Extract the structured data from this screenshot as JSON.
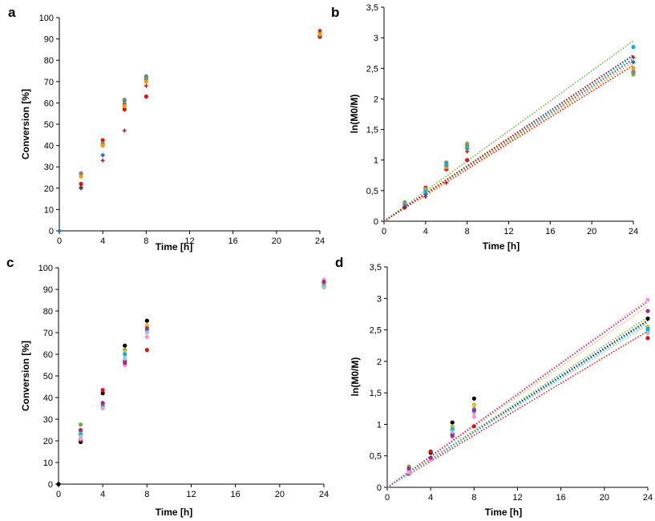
{
  "chart_data": [
    {
      "panel": "a",
      "type": "scatter",
      "xlabel": "Time [h]",
      "ylabel": "Conversion [%]",
      "xticks": [
        0,
        4,
        8,
        12,
        16,
        20,
        24
      ],
      "yticks": [
        "0",
        "10",
        "20",
        "30",
        "40",
        "50",
        "60",
        "70",
        "80",
        "90",
        "100"
      ],
      "xlim": [
        0,
        24
      ],
      "ylim": [
        0,
        100
      ],
      "grid": false,
      "series": [
        {
          "color": "#2e75b6",
          "marker": "diamond",
          "points": [
            [
              0,
              0
            ],
            [
              2,
              20
            ],
            [
              4,
              35.5
            ],
            [
              6,
              59.5
            ],
            [
              8,
              71
            ],
            [
              24,
              91.5
            ]
          ]
        },
        {
          "color": "#e01010",
          "marker": "circle",
          "points": [
            [
              2,
              22
            ],
            [
              4,
              42.5
            ],
            [
              6,
              57
            ],
            [
              8,
              63
            ],
            [
              24,
              91
            ]
          ]
        },
        {
          "color": "#70ad47",
          "marker": "circle",
          "points": [
            [
              2,
              26.5
            ],
            [
              4,
              41
            ],
            [
              6,
              61.5
            ],
            [
              8,
              72
            ],
            [
              24,
              92
            ]
          ]
        },
        {
          "color": "#808080",
          "marker": "circle",
          "points": [
            [
              2,
              27
            ],
            [
              4,
              40.5
            ],
            [
              6,
              61
            ],
            [
              8,
              72.5
            ],
            [
              24,
              93
            ]
          ]
        },
        {
          "color": "#ff9900",
          "marker": "circle",
          "points": [
            [
              2,
              25.5
            ],
            [
              4,
              40
            ],
            [
              6,
              58.5
            ],
            [
              8,
              70
            ],
            [
              24,
              92.5
            ]
          ]
        },
        {
          "color": "#c00000",
          "marker": "plus",
          "points": [
            [
              2,
              20.5
            ],
            [
              4,
              33
            ],
            [
              6,
              47
            ],
            [
              8,
              68
            ],
            [
              24,
              94
            ]
          ]
        }
      ]
    },
    {
      "panel": "b",
      "type": "scatter",
      "xlabel": "Time [h]",
      "ylabel": "ln(M0/M)",
      "xticks": [
        0,
        4,
        8,
        12,
        16,
        20,
        24
      ],
      "yticks": [
        "0",
        "0,5",
        "1",
        "1,5",
        "2",
        "2,5",
        "3",
        "3,5"
      ],
      "xlim": [
        0,
        24
      ],
      "ylim": [
        0,
        3.5
      ],
      "grid": false,
      "series": [
        {
          "color": "#2e75b6",
          "marker": "diamond",
          "points": [
            [
              2,
              0.22
            ],
            [
              4,
              0.44
            ],
            [
              6,
              0.9
            ],
            [
              8,
              1.24
            ],
            [
              24,
              2.6
            ]
          ],
          "trend_end": 2.64
        },
        {
          "color": "#e01010",
          "marker": "circle",
          "points": [
            [
              2,
              0.25
            ],
            [
              4,
              0.55
            ],
            [
              6,
              0.85
            ],
            [
              8,
              1.0
            ],
            [
              24,
              2.43
            ]
          ],
          "trend_end": 2.55
        },
        {
          "color": "#70ad47",
          "marker": "circle",
          "points": [
            [
              2,
              0.31
            ],
            [
              4,
              0.53
            ],
            [
              6,
              0.96
            ],
            [
              8,
              1.27
            ],
            [
              24,
              2.4
            ]
          ],
          "trend_end": 2.95
        },
        {
          "color": "#808080",
          "marker": "circle",
          "points": [
            [
              2,
              0.3
            ],
            [
              4,
              0.5
            ],
            [
              6,
              0.95
            ],
            [
              8,
              1.22
            ],
            [
              24,
              2.45
            ]
          ],
          "trend_end": 2.66
        },
        {
          "color": "#ff9900",
          "marker": "circle",
          "points": [
            [
              2,
              0.28
            ],
            [
              4,
              0.51
            ],
            [
              6,
              0.88
            ],
            [
              8,
              1.2
            ],
            [
              24,
              2.5
            ]
          ],
          "trend_end": 2.6
        },
        {
          "color": "#00b0f0",
          "marker": "circle",
          "points": [
            [
              2,
              0.27
            ],
            [
              4,
              0.49
            ],
            [
              6,
              0.92
            ],
            [
              8,
              1.19
            ],
            [
              24,
              2.85
            ]
          ],
          "trend_end": 2.7
        },
        {
          "color": "#c00000",
          "marker": "plus",
          "points": [
            [
              2,
              0.23
            ],
            [
              4,
              0.4
            ],
            [
              6,
              0.63
            ],
            [
              8,
              1.14
            ],
            [
              24,
              2.68
            ]
          ],
          "trend_end": 2.72
        }
      ]
    },
    {
      "panel": "c",
      "type": "scatter",
      "xlabel": "Time [h]",
      "ylabel": "Conversion [%]",
      "xticks": [
        0,
        4,
        8,
        12,
        16,
        20,
        24
      ],
      "yticks": [
        "0",
        "10",
        "20",
        "30",
        "40",
        "50",
        "60",
        "70",
        "80",
        "90",
        "100"
      ],
      "xlim": [
        0,
        24
      ],
      "ylim": [
        0,
        100
      ],
      "grid": false,
      "series": [
        {
          "color": "#000000",
          "marker": "circle",
          "points": [
            [
              0,
              0
            ],
            [
              2,
              19.5
            ],
            [
              4,
              42
            ],
            [
              6,
              64
            ],
            [
              8,
              75.5
            ],
            [
              24,
              93
            ]
          ]
        },
        {
          "color": "#e01010",
          "marker": "circle",
          "points": [
            [
              2,
              20.5
            ],
            [
              4,
              43.5
            ],
            [
              6,
              57
            ],
            [
              8,
              62
            ],
            [
              24,
              91
            ]
          ]
        },
        {
          "color": "#70ad47",
          "marker": "circle",
          "points": [
            [
              2,
              27.5
            ],
            [
              4,
              36
            ],
            [
              6,
              62
            ],
            [
              8,
              73
            ],
            [
              24,
              92
            ]
          ]
        },
        {
          "color": "#ffc000",
          "marker": "circle",
          "points": [
            [
              2,
              24
            ],
            [
              4,
              37
            ],
            [
              6,
              61
            ],
            [
              8,
              73.5
            ],
            [
              24,
              92.5
            ]
          ]
        },
        {
          "color": "#00b0f0",
          "marker": "circle",
          "points": [
            [
              2,
              23
            ],
            [
              4,
              36
            ],
            [
              6,
              60
            ],
            [
              8,
              71
            ],
            [
              24,
              91.5
            ]
          ]
        },
        {
          "color": "#9dc3e6",
          "marker": "circle",
          "points": [
            [
              2,
              22
            ],
            [
              4,
              35
            ],
            [
              6,
              58
            ],
            [
              8,
              70
            ],
            [
              24,
              91
            ]
          ]
        },
        {
          "color": "#ff99cc",
          "marker": "circle",
          "points": [
            [
              2,
              21
            ],
            [
              4,
              35
            ],
            [
              6,
              55
            ],
            [
              8,
              68
            ],
            [
              24,
              94.5
            ]
          ]
        },
        {
          "color": "#a02b93",
          "marker": "circle",
          "points": [
            [
              2,
              25
            ],
            [
              4,
              37.5
            ],
            [
              6,
              56
            ],
            [
              8,
              72
            ],
            [
              24,
              93.5
            ]
          ]
        }
      ]
    },
    {
      "panel": "d",
      "type": "scatter",
      "xlabel": "Time [h]",
      "ylabel": "ln(M0/M)",
      "xticks": [
        0,
        4,
        8,
        12,
        16,
        20,
        24
      ],
      "yticks": [
        "0",
        "0,5",
        "1",
        "1,5",
        "2",
        "2,5",
        "3",
        "3,5"
      ],
      "xlim": [
        0,
        24
      ],
      "ylim": [
        0,
        3.5
      ],
      "grid": false,
      "series": [
        {
          "color": "#000000",
          "marker": "circle",
          "points": [
            [
              2,
              0.22
            ],
            [
              4,
              0.55
            ],
            [
              6,
              1.03
            ],
            [
              8,
              1.41
            ],
            [
              24,
              2.68
            ]
          ],
          "trend_end": 2.65
        },
        {
          "color": "#e01010",
          "marker": "circle",
          "points": [
            [
              2,
              0.24
            ],
            [
              4,
              0.57
            ],
            [
              6,
              0.85
            ],
            [
              8,
              0.97
            ],
            [
              24,
              2.37
            ]
          ],
          "trend_end": 2.48
        },
        {
          "color": "#70ad47",
          "marker": "circle",
          "points": [
            [
              2,
              0.33
            ],
            [
              4,
              0.45
            ],
            [
              6,
              0.96
            ],
            [
              8,
              1.31
            ],
            [
              24,
              2.5
            ]
          ],
          "trend_end": 2.7
        },
        {
          "color": "#ffc000",
          "marker": "circle",
          "points": [
            [
              2,
              0.28
            ],
            [
              4,
              0.46
            ],
            [
              6,
              0.94
            ],
            [
              8,
              1.3
            ],
            [
              24,
              2.55
            ]
          ],
          "trend_end": 2.88
        },
        {
          "color": "#00b0f0",
          "marker": "circle",
          "points": [
            [
              2,
              0.26
            ],
            [
              4,
              0.45
            ],
            [
              6,
              0.92
            ],
            [
              8,
              1.24
            ],
            [
              24,
              2.52
            ]
          ],
          "trend_end": 2.62
        },
        {
          "color": "#9dc3e6",
          "marker": "circle",
          "points": [
            [
              2,
              0.25
            ],
            [
              4,
              0.44
            ],
            [
              6,
              0.88
            ],
            [
              8,
              1.18
            ],
            [
              24,
              2.45
            ]
          ],
          "trend_end": 2.58
        },
        {
          "color": "#ff99cc",
          "marker": "circle",
          "points": [
            [
              2,
              0.23
            ],
            [
              4,
              0.43
            ],
            [
              6,
              0.8
            ],
            [
              8,
              1.12
            ],
            [
              24,
              2.98
            ]
          ],
          "trend_end": 2.98
        },
        {
          "color": "#a02b93",
          "marker": "circle",
          "points": [
            [
              2,
              0.3
            ],
            [
              4,
              0.47
            ],
            [
              6,
              0.82
            ],
            [
              8,
              1.22
            ],
            [
              24,
              2.8
            ]
          ],
          "trend_end": 2.95
        }
      ]
    }
  ]
}
